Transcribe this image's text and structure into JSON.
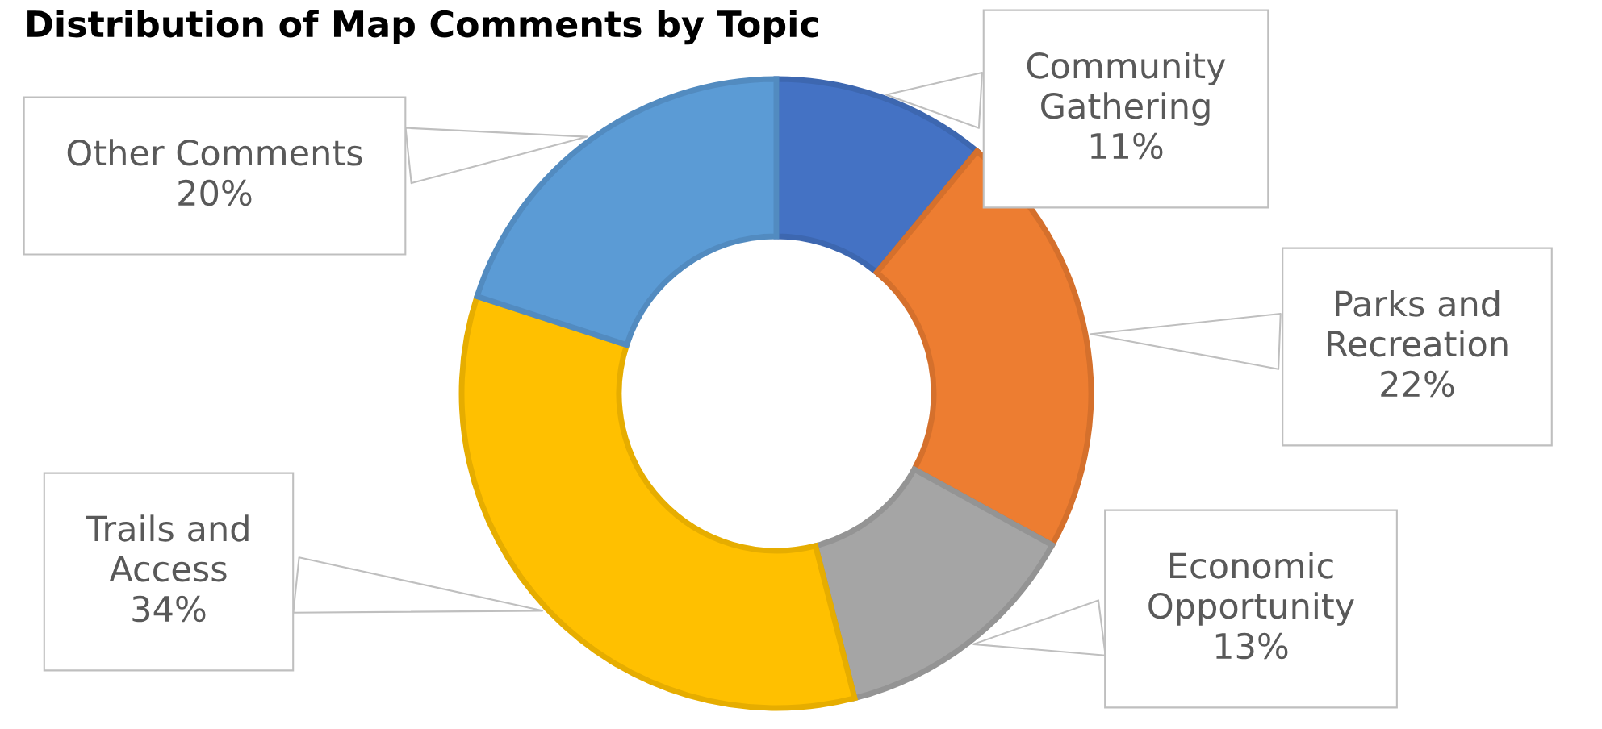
{
  "chart_data": {
    "type": "donut",
    "title": "Distribution of Map Comments by Topic",
    "categories": [
      "Community Gathering",
      "Parks and Recreation",
      "Economic Opportunity",
      "Trails and Access",
      "Other Comments"
    ],
    "values": [
      11,
      22,
      13,
      34,
      20
    ],
    "value_labels": [
      "11%",
      "22%",
      "13%",
      "34%",
      "20%"
    ],
    "colors": [
      "#4472c4",
      "#ed7d31",
      "#a5a5a5",
      "#ffc000",
      "#5b9bd5"
    ],
    "legend": false
  }
}
